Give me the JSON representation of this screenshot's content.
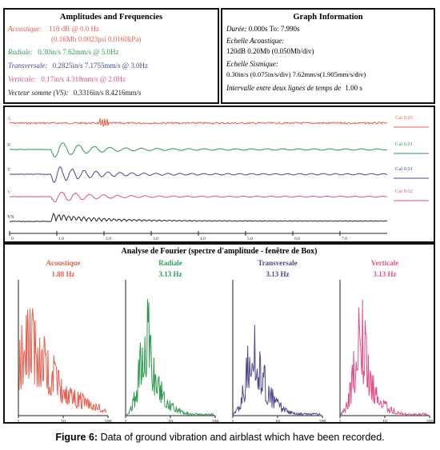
{
  "amplitudes": {
    "title": "Amplitudes and Frequencies",
    "acoustique_label": "Acoustique:",
    "acoustique_value": "118 dB @ 0.0 Hz",
    "acoustique_sub": "(0.16Mb 0.0023psi 0.0160kPa)",
    "radiale_label": "Radiale:",
    "radiale_value": "0.30in/s 7.62mm/s @ 5.0Hz",
    "transversale_label": "Transversale:",
    "transversale_value": "0.2825in/s 7.1755mm/s @ 3.0Hz",
    "verticale_label": "Verticale:",
    "verticale_value": "0.17in/s 4.318mm/s @ 2.0Hz",
    "vs_label": "Vecteur somme (VS):",
    "vs_value": "0.3316in/s 8.4216mm/s"
  },
  "graph_info": {
    "title": "Graph Information",
    "duree_label": "Durée:",
    "duree_value": "0.000s To: 7.990s",
    "echelle_acoustique_label": "Echelle Acoustique:",
    "echelle_acoustique_value": "120dB  0.20Mb  (0.050Mb/div)",
    "echelle_sismique_label": "Echelle Sismique:",
    "echelle_sismique_value": "0.30in/s (0.075in/s/div)  7.62mm/s(1.905mm/s/div)",
    "intervalle_label": "Intervalle entre deux lignes de temps de",
    "intervalle_value": "1.00 s"
  },
  "waveforms": {
    "channels": [
      {
        "key": "A",
        "cal": "Cal 0.03"
      },
      {
        "key": "R",
        "cal": "Cal 0.01"
      },
      {
        "key": "T",
        "cal": "Cal 0.01"
      },
      {
        "key": "V",
        "cal": "Cal 0.02"
      },
      {
        "key": "VS",
        "cal": ""
      }
    ],
    "time_ticks": [
      "0",
      "1.0",
      "2.0",
      "3.0",
      "4.0",
      "5.0",
      "6.0",
      "7.0"
    ]
  },
  "colors": {
    "acoustique": "#e8604f",
    "radiale": "#2e9a50",
    "transversale": "#4a4a8c",
    "verticale": "#e0508a",
    "vs": "#222222"
  },
  "fourier": {
    "title": "Analyse de Fourier (spectre d'amplitude - fenêtre de Box)",
    "xlabel": "Fréquence (Hz)",
    "panels": [
      {
        "name": "Acoustique",
        "freq": "1.88 Hz"
      },
      {
        "name": "Radiale",
        "freq": "3.13 Hz"
      },
      {
        "name": "Transversale",
        "freq": "3.13 Hz"
      },
      {
        "name": "Verticale",
        "freq": "3.13 Hz"
      }
    ],
    "tick_labels": [
      "1",
      "10",
      "100"
    ]
  },
  "chart_data": [
    {
      "type": "line",
      "title": "Acoustique",
      "peak_hz": 1.88,
      "xscale": "log",
      "xlim": [
        1,
        100
      ]
    },
    {
      "type": "line",
      "title": "Radiale",
      "peak_hz": 3.13,
      "xscale": "log",
      "xlim": [
        1,
        100
      ]
    },
    {
      "type": "line",
      "title": "Transversale",
      "peak_hz": 3.13,
      "xscale": "log",
      "xlim": [
        1,
        100
      ]
    },
    {
      "type": "line",
      "title": "Verticale",
      "peak_hz": 3.13,
      "xscale": "log",
      "xlim": [
        1,
        100
      ]
    }
  ],
  "caption": {
    "label": "Figure 6:",
    "text": " Data of ground vibration and airblast which have been recorded."
  }
}
